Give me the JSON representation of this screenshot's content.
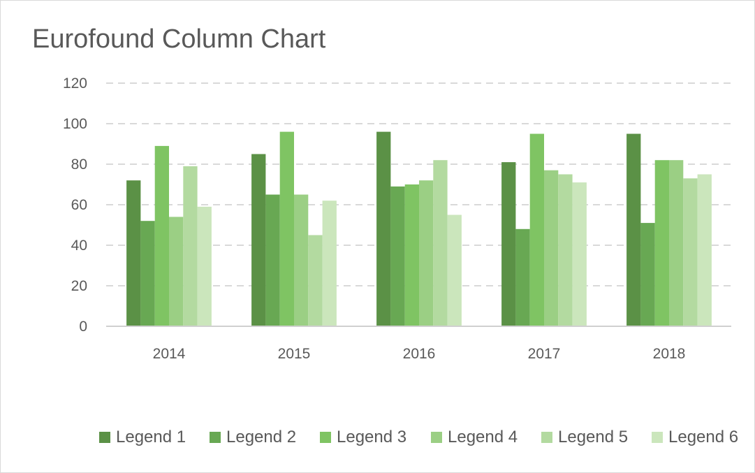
{
  "chart_data": {
    "type": "bar",
    "title": "Eurofound Column Chart",
    "xlabel": "",
    "ylabel": "",
    "categories": [
      "2014",
      "2015",
      "2016",
      "2017",
      "2018"
    ],
    "ylim": [
      0,
      120
    ],
    "yticks": [
      0,
      20,
      40,
      60,
      80,
      100,
      120
    ],
    "grid": true,
    "legend_position": "bottom",
    "series": [
      {
        "name": "Legend 1",
        "color": "#5b9146",
        "values": [
          72,
          85,
          96,
          81,
          95
        ]
      },
      {
        "name": "Legend 2",
        "color": "#68a853",
        "values": [
          52,
          65,
          69,
          48,
          51
        ]
      },
      {
        "name": "Legend 3",
        "color": "#7fc463",
        "values": [
          89,
          96,
          70,
          95,
          82
        ]
      },
      {
        "name": "Legend 4",
        "color": "#9bcf84",
        "values": [
          54,
          65,
          72,
          77,
          82
        ]
      },
      {
        "name": "Legend 5",
        "color": "#b3daa0",
        "values": [
          79,
          45,
          82,
          75,
          73
        ]
      },
      {
        "name": "Legend 6",
        "color": "#cbe6bc",
        "values": [
          59,
          62,
          55,
          71,
          75
        ]
      }
    ]
  },
  "colors": {
    "text": "#595959",
    "grid": "#d9d9d9",
    "axis": "#d0d0d0"
  }
}
